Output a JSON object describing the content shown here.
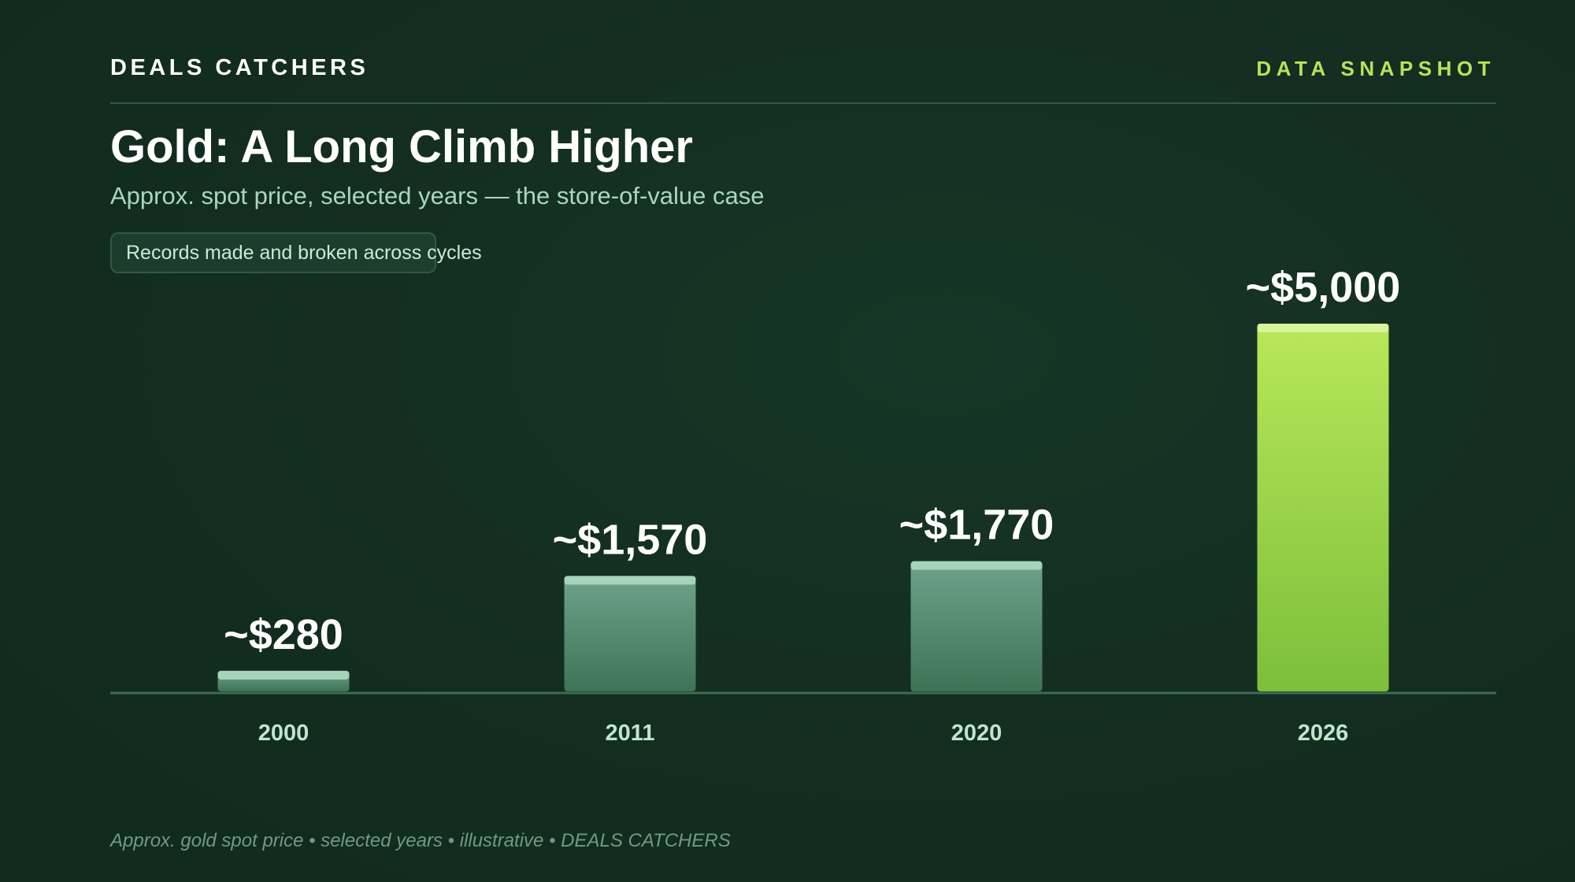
{
  "header": {
    "brand": "DEALS CATCHERS",
    "tag": "DATA SNAPSHOT"
  },
  "title": "Gold: A Long Climb Higher",
  "subtitle": "Approx. spot price, selected years — the store-of-value case",
  "badge": "Records made and broken across cycles",
  "footer": "Approx. gold spot price • selected years • illustrative • DEALS CATCHERS",
  "colors": {
    "background": "#132d21",
    "accent": "#b7e35a",
    "bar_default_top": "#6ea38a",
    "bar_default_bottom": "#3f7356",
    "bar_highlight_top": "#b9e75a",
    "bar_highlight_bottom": "#7cbf3a"
  },
  "chart_data": {
    "type": "bar",
    "categories": [
      "2000",
      "2011",
      "2020",
      "2026"
    ],
    "values": [
      280,
      1570,
      1770,
      5000
    ],
    "value_labels": [
      "~$280",
      "~$1,570",
      "~$1,770",
      "~$5,000"
    ],
    "highlight_index": 3,
    "title": "Gold: A Long Climb Higher",
    "xlabel": "",
    "ylabel": "",
    "ylim": [
      0,
      5000
    ],
    "grid": false,
    "legend": "none"
  }
}
